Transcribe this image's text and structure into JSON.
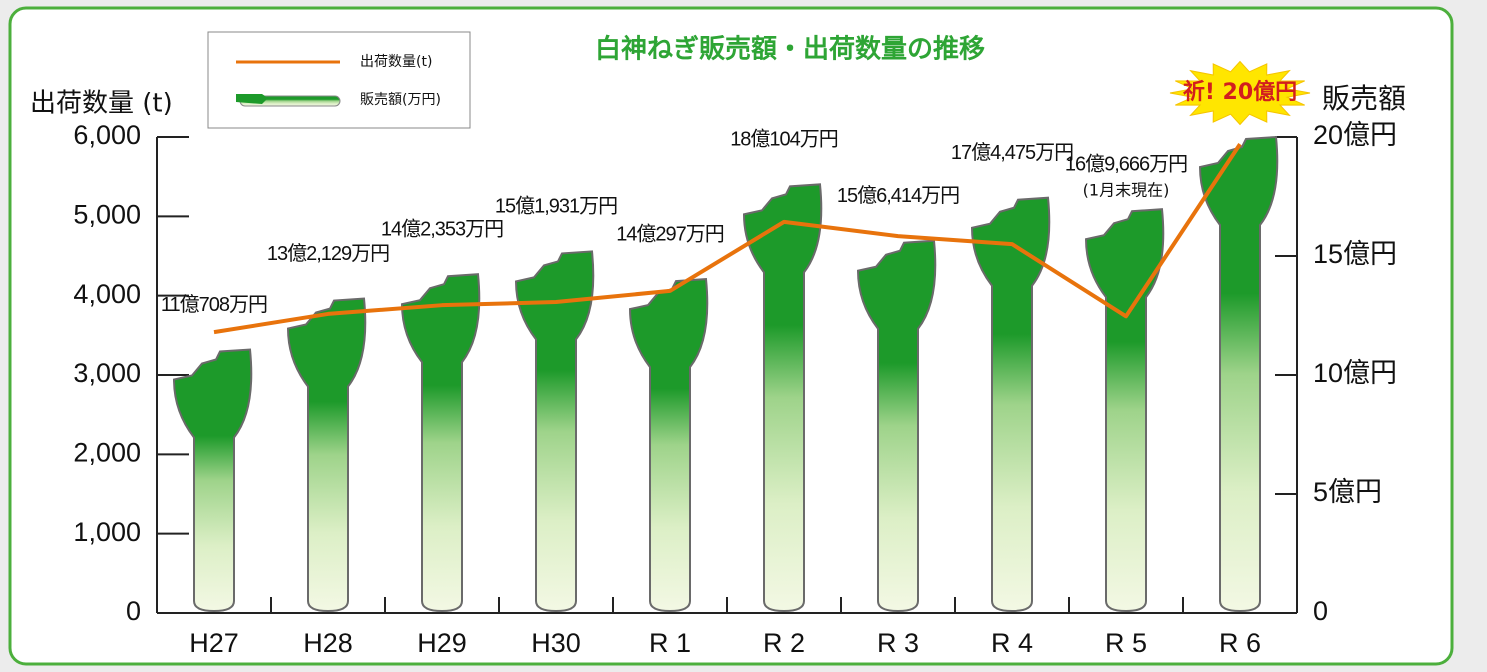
{
  "chart_data": {
    "type": "combo",
    "title": "白神ねぎ販売額・出荷数量の推移",
    "ylabel": "出荷数量 (t)",
    "y2label": "販売額",
    "note": "(1月末現在)",
    "categories": [
      "H27",
      "H28",
      "H29",
      "H30",
      "R 1",
      "R 2",
      "R 3",
      "R 4",
      "R 5",
      "R 6"
    ],
    "series": [
      {
        "name": "出荷数量(t)",
        "type": "line",
        "color": "#e8730c",
        "axis": "y",
        "values": [
          3540,
          3770,
          3880,
          3920,
          4060,
          4930,
          4750,
          4650,
          3740,
          5910
        ]
      },
      {
        "name": "販売額(万円)",
        "type": "bar",
        "color": "#1d9a2a",
        "axis": "y2",
        "values": [
          110708,
          132129,
          142353,
          151931,
          140297,
          180104,
          156414,
          174475,
          169666,
          200000
        ],
        "value_labels": [
          "11億708万円",
          "13億2,129万円",
          "14億2,353万円",
          "15億1,931万円",
          "14億297万円",
          "18億104万円",
          "15億6,414万円",
          "17億4,475万円",
          "16億9,666万円",
          "祈! 20億円"
        ]
      }
    ],
    "ylim": [
      0,
      6000
    ],
    "yticks": [
      0,
      {
        "value": 1000,
        "label": "1,000"
      },
      {
        "value": 2000,
        "label": "2,000"
      },
      {
        "value": 3000,
        "label": "3,000"
      },
      {
        "value": 4000,
        "label": "4,000"
      },
      {
        "value": 5000,
        "label": "5,000"
      },
      {
        "value": 6000,
        "label": "6,000"
      }
    ],
    "y2lim": [
      0,
      200000
    ],
    "y2ticks": [
      0,
      {
        "value": 50000,
        "label": "5億円"
      },
      {
        "value": 100000,
        "label": "10億円"
      },
      {
        "value": 150000,
        "label": "15億円"
      },
      {
        "value": 200000,
        "label": "20億円"
      }
    ],
    "legend": "top-left"
  }
}
